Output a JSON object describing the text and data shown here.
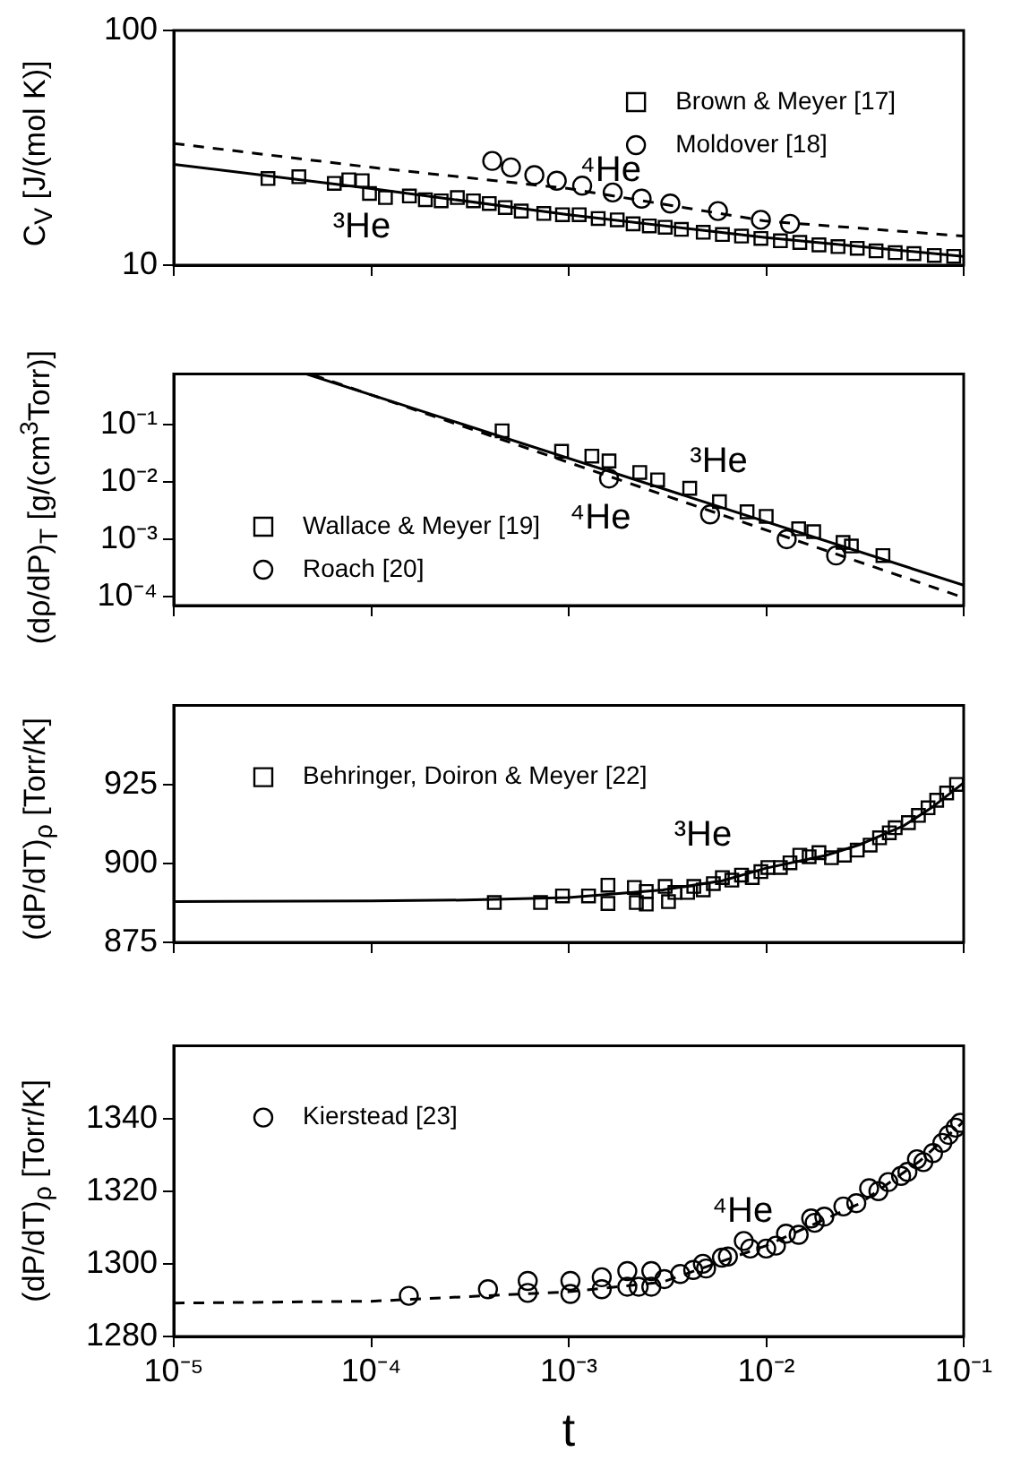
{
  "chart_data": [
    {
      "type": "scatter",
      "ylabel": "C$_{V}$ [J/(mol K)]",
      "log": "xy",
      "legend": "top right",
      "tick_labels": "y",
      "xlim": [
        1e-05,
        0.1
      ],
      "xticks": [
        {
          "value": 1e-05,
          "label": null
        },
        {
          "value": 0.0001,
          "label": null
        },
        {
          "value": 0.001,
          "label": null
        },
        {
          "value": 0.01,
          "label": null
        },
        {
          "value": 0.1,
          "label": null
        }
      ],
      "ylim": [
        10,
        100
      ],
      "yticks": [
        10,
        100
      ],
      "series": [
        {
          "type": "scatter",
          "name": "Brown & Meyer [17]",
          "color": "#000000",
          "marker": "square",
          "x": [
            3e-05,
            4.3e-05,
            6.5e-05,
            7.7e-05,
            9e-05,
            9.8e-05,
            0.000118,
            0.000156,
            0.000188,
            0.000226,
            0.000273,
            0.000329,
            0.000396,
            0.000477,
            0.000575,
            0.000748,
            0.00093,
            0.00113,
            0.00141,
            0.00176,
            0.00212,
            0.00256,
            0.00308,
            0.00372,
            0.0048,
            0.006,
            0.0075,
            0.0094,
            0.0118,
            0.0148,
            0.0185,
            0.0231,
            0.0289,
            0.036,
            0.045,
            0.056,
            0.071,
            0.089
          ],
          "values": [
            23.4,
            23.8,
            22.3,
            23.1,
            22.9,
            20.2,
            19.4,
            19.7,
            19.0,
            18.8,
            19.4,
            18.8,
            18.3,
            17.6,
            17.0,
            16.6,
            16.4,
            16.4,
            15.8,
            15.6,
            15.0,
            14.7,
            14.5,
            14.2,
            13.8,
            13.5,
            13.3,
            13.0,
            12.7,
            12.5,
            12.2,
            12.0,
            11.8,
            11.5,
            11.3,
            11.2,
            11.0,
            10.9
          ]
        },
        {
          "type": "scatter",
          "name": "Moldover [18]",
          "color": "#000000",
          "marker": "circle",
          "x": [
            0.00041,
            0.00051,
            0.00067,
            0.00087,
            0.00117,
            0.00167,
            0.00234,
            0.00327,
            0.0057,
            0.0094,
            0.0132
          ],
          "values": [
            27.8,
            26.1,
            24.2,
            22.9,
            21.8,
            20.4,
            19.2,
            18.3,
            17.0,
            15.6,
            15.0
          ]
        },
        {
          "type": "line",
          "color": "#000000",
          "line_style": "solid",
          "x": [
            1e-05,
            0.0001,
            0.001,
            0.01,
            0.1
          ],
          "values": [
            26.9,
            21.2,
            16.4,
            13.1,
            10.9
          ]
        },
        {
          "type": "line",
          "color": "#000000",
          "line_style": "dashed",
          "x": [
            1e-05,
            0.0001,
            0.001,
            0.01,
            0.1
          ],
          "values": [
            33.0,
            26.1,
            21.2,
            15.4,
            13.3
          ]
        }
      ],
      "annotations": [
        "⁴He",
        "³He"
      ]
    },
    {
      "type": "scatter",
      "ylabel": "(dρ/dP)$_{T}$ [g/(cm$^{3}$Torr)]",
      "log": "xy",
      "legend": "bottom left",
      "tick_labels": "y",
      "xlim": [
        1e-05,
        0.1
      ],
      "xticks": [
        {
          "value": 1e-05,
          "label": null
        },
        {
          "value": 0.0001,
          "label": null
        },
        {
          "value": 0.001,
          "label": null
        },
        {
          "value": 0.01,
          "label": null
        },
        {
          "value": 0.1,
          "label": null
        }
      ],
      "ylim": [
        7e-05,
        0.75
      ],
      "yticks": [
        {
          "value": 0.0001,
          "label": "10⁻⁴"
        },
        {
          "value": 0.001,
          "label": "10⁻³"
        },
        {
          "value": 0.01,
          "label": "10⁻²"
        },
        {
          "value": 0.1,
          "label": "10⁻¹"
        }
      ],
      "series": [
        {
          "type": "scatter",
          "name": "Wallace & Meyer [19]",
          "color": "#000000",
          "marker": "square",
          "x": [
            0.00046,
            0.00092,
            0.00131,
            0.0016,
            0.00229,
            0.00282,
            0.0041,
            0.0058,
            0.008,
            0.01,
            0.0146,
            0.0174,
            0.0245,
            0.027,
            0.039
          ],
          "values": [
            0.077,
            0.034,
            0.028,
            0.023,
            0.0145,
            0.0108,
            0.0077,
            0.0045,
            0.003,
            0.0025,
            0.00152,
            0.00135,
            0.00088,
            0.00076,
            0.00052
          ]
        },
        {
          "type": "scatter",
          "name": "Roach [20]",
          "color": "#000000",
          "marker": "circle",
          "x": [
            0.0016,
            0.0052,
            0.0127,
            0.0226
          ],
          "values": [
            0.0114,
            0.0027,
            0.001,
            0.00052
          ]
        },
        {
          "type": "line",
          "color": "#000000",
          "line_style": "solid",
          "x": [
            4.7e-05,
            0.1
          ],
          "values": [
            0.75,
            0.000158
          ]
        },
        {
          "type": "line",
          "color": "#000000",
          "line_style": "dashed",
          "x": [
            5.1e-05,
            0.1
          ],
          "values": [
            0.72,
            9.6e-05
          ]
        }
      ],
      "annotations": [
        "³He",
        "⁴He"
      ]
    },
    {
      "type": "scatter",
      "ylabel": "(dP/dT)$_{ρ}$ [Torr/K]",
      "log": "x",
      "legend": "top left",
      "tick_labels": "y",
      "xlim": [
        1e-05,
        0.1
      ],
      "xticks": [
        {
          "value": 1e-05,
          "label": null
        },
        {
          "value": 0.0001,
          "label": null
        },
        {
          "value": 0.001,
          "label": null
        },
        {
          "value": 0.01,
          "label": null
        },
        {
          "value": 0.1,
          "label": null
        }
      ],
      "ylim": [
        875,
        950
      ],
      "yticks": [
        875,
        900,
        925
      ],
      "series": [
        {
          "type": "scatter",
          "name": "Behringer, Doiron & Meyer [22]",
          "color": "#000000",
          "marker": "square",
          "x": [
            0.00042,
            0.00072,
            0.00093,
            0.00126,
            0.00158,
            0.00158,
            0.00215,
            0.0022,
            0.00247,
            0.00247,
            0.00308,
            0.0032,
            0.00345,
            0.004,
            0.0043,
            0.0048,
            0.0054,
            0.006,
            0.0067,
            0.0075,
            0.0085,
            0.0094,
            0.0102,
            0.0118,
            0.0132,
            0.0148,
            0.0165,
            0.0185,
            0.0214,
            0.0249,
            0.0289,
            0.0336,
            0.0375,
            0.042,
            0.045,
            0.0525,
            0.059,
            0.066,
            0.073,
            0.082,
            0.092
          ],
          "values": [
            887.6,
            887.6,
            889.7,
            889.7,
            893.1,
            887.3,
            892.4,
            887.6,
            887.1,
            891.1,
            892.7,
            887.9,
            890.8,
            890.8,
            892.7,
            891.6,
            893.6,
            895.5,
            894.7,
            896.3,
            895.5,
            897.4,
            898.7,
            898.7,
            900.2,
            902.6,
            902.1,
            903.4,
            901.8,
            902.6,
            904.2,
            905.8,
            908.1,
            909.7,
            911.3,
            912.9,
            915.2,
            917.6,
            920.0,
            922.3,
            925.0
          ]
        },
        {
          "type": "line",
          "color": "#000000",
          "line_style": "solid",
          "x": [
            1e-05,
            0.0001,
            0.0003,
            0.001,
            0.003,
            0.006,
            0.01,
            0.02,
            0.03,
            0.05,
            0.07,
            0.1
          ],
          "values": [
            887.9,
            888.1,
            888.4,
            889.2,
            891.6,
            894.5,
            898.5,
            902.5,
            906.0,
            912.0,
            918.0,
            925.5
          ]
        }
      ],
      "annotations": [
        "³He"
      ]
    },
    {
      "type": "scatter",
      "xlabel": "t",
      "ylabel": "(dP/dT)$_{ρ}$ [Torr/K]",
      "log": "x",
      "legend": "top left",
      "xlim": [
        1e-05,
        0.1
      ],
      "xticks": [
        {
          "value": 1e-05,
          "label": "10⁻⁵"
        },
        {
          "value": 0.0001,
          "label": "10⁻⁴"
        },
        {
          "value": 0.001,
          "label": "10⁻³"
        },
        {
          "value": 0.01,
          "label": "10⁻²"
        },
        {
          "value": 0.1,
          "label": "10⁻¹"
        }
      ],
      "ylim": [
        1280,
        1360
      ],
      "yticks": [
        1280,
        1300,
        1320,
        1340
      ],
      "series": [
        {
          "type": "scatter",
          "name": "Kierstead [23]",
          "color": "#000000",
          "marker": "circle",
          "x": [
            0.000155,
            0.00039,
            0.00062,
            0.00062,
            0.00102,
            0.00102,
            0.00147,
            0.00147,
            0.00198,
            0.00198,
            0.00226,
            0.00262,
            0.00262,
            0.00305,
            0.00367,
            0.00427,
            0.00478,
            0.00496,
            0.00597,
            0.0064,
            0.0077,
            0.0083,
            0.01,
            0.0112,
            0.0126,
            0.0146,
            0.0169,
            0.0176,
            0.0197,
            0.0246,
            0.0286,
            0.0332,
            0.037,
            0.0415,
            0.0482,
            0.0519,
            0.058,
            0.0625,
            0.07,
            0.078,
            0.084,
            0.091,
            0.096
          ],
          "values": [
            1291.2,
            1293.0,
            1295.3,
            1292.0,
            1295.3,
            1291.7,
            1296.3,
            1293.0,
            1298.0,
            1293.7,
            1293.7,
            1298.0,
            1293.7,
            1295.8,
            1297.2,
            1298.3,
            1300.0,
            1298.7,
            1301.7,
            1302.0,
            1306.3,
            1304.2,
            1304.2,
            1305.0,
            1308.3,
            1308.0,
            1312.5,
            1311.3,
            1313.0,
            1315.8,
            1316.7,
            1320.8,
            1320.0,
            1322.5,
            1324.2,
            1325.3,
            1328.8,
            1328.0,
            1330.5,
            1333.3,
            1335.5,
            1337.5,
            1338.8
          ]
        },
        {
          "type": "line",
          "color": "#000000",
          "line_style": "dashed",
          "x": [
            1e-05,
            0.0001,
            0.001,
            0.003,
            0.01,
            0.03,
            0.06,
            0.1
          ],
          "values": [
            1289.2,
            1289.7,
            1292.3,
            1295.0,
            1305.0,
            1316.7,
            1328.3,
            1339.2
          ]
        }
      ],
      "annotations": [
        "⁴He"
      ]
    }
  ]
}
